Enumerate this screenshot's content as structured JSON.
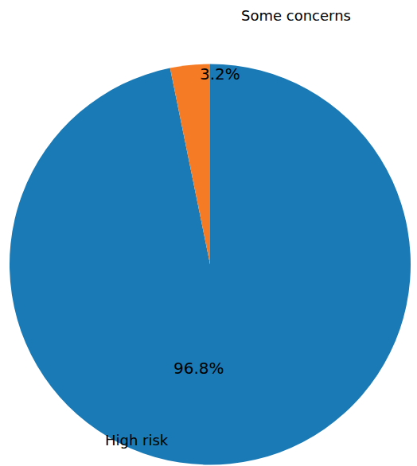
{
  "chart_data": {
    "type": "pie",
    "categories": [
      "High risk",
      "Some concerns"
    ],
    "values": [
      96.8,
      3.2
    ],
    "value_labels": [
      "96.8%",
      "3.2%"
    ],
    "colors": [
      "#1a7ab5",
      "#f57c24"
    ],
    "data_labels": true
  }
}
